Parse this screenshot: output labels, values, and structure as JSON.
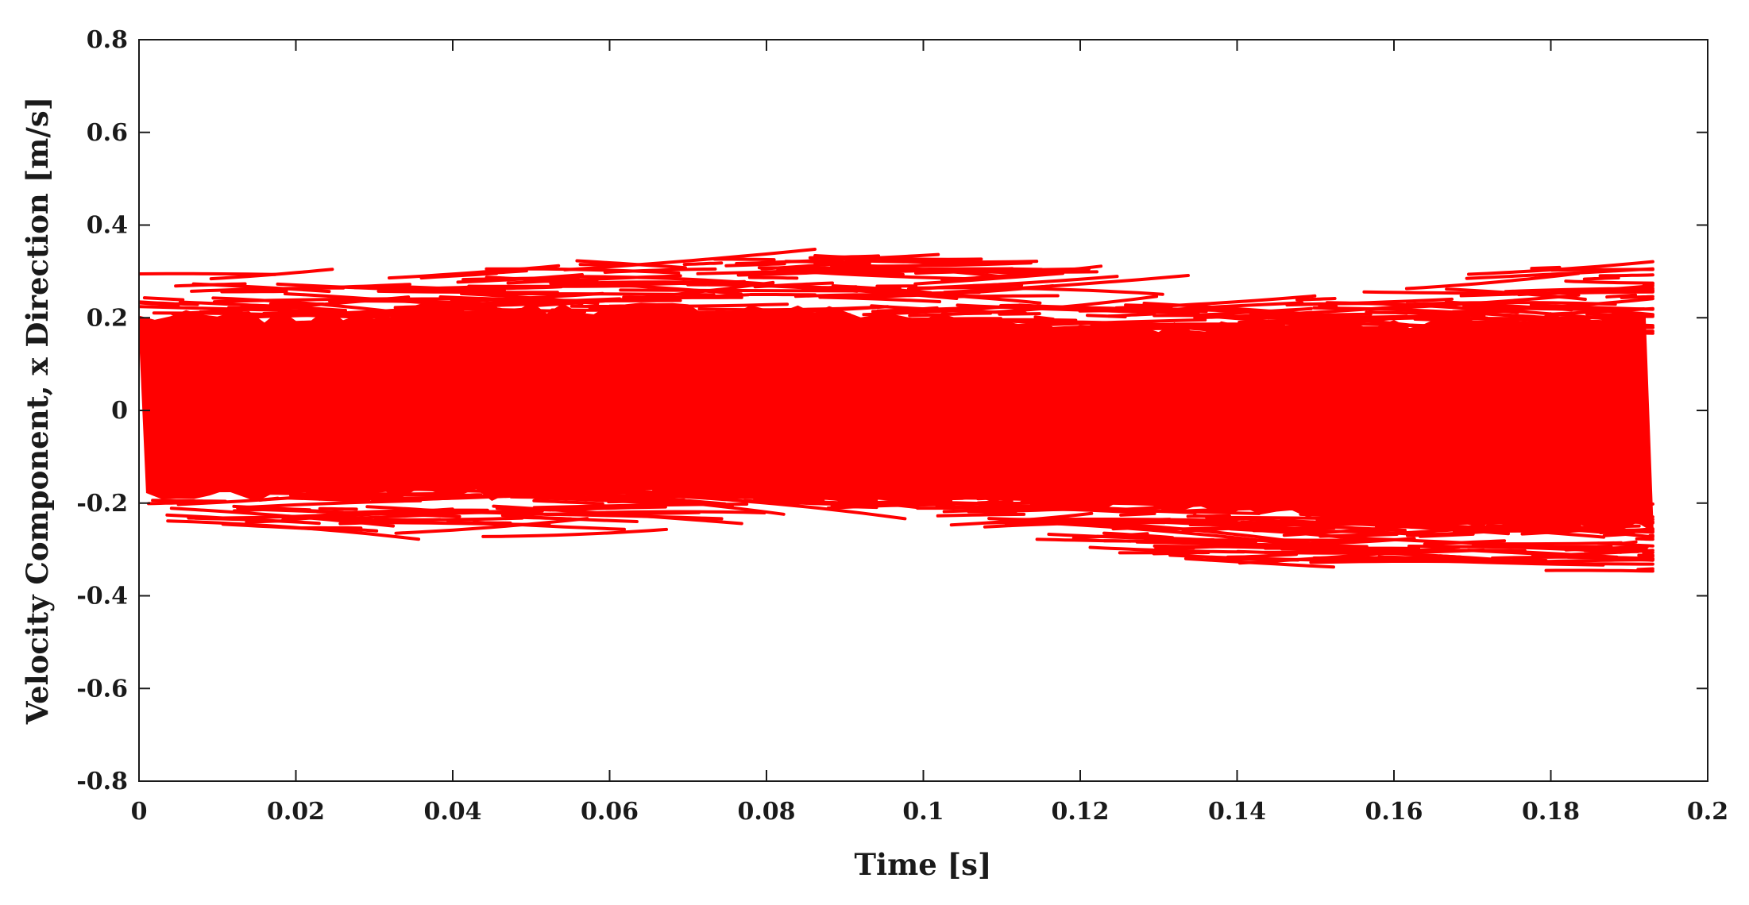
{
  "chart_data": {
    "type": "line",
    "title": "",
    "xlabel": "Time [s]",
    "ylabel": "Velocity Component, x Direction [m/s]",
    "xlim": [
      0,
      0.2
    ],
    "ylim": [
      -0.8,
      0.8
    ],
    "x_ticks": [
      "0",
      "0.02",
      "0.04",
      "0.06",
      "0.08",
      "0.1",
      "0.12",
      "0.14",
      "0.16",
      "0.18",
      "0.2"
    ],
    "y_ticks": [
      "-0.8",
      "-0.6",
      "-0.4",
      "-0.2",
      "0",
      "0.2",
      "0.4",
      "0.6",
      "0.8"
    ],
    "grid": false,
    "legend": "none",
    "line_color": "#ff0000",
    "data_extent": {
      "x": [
        0,
        0.193
      ]
    },
    "envelope": {
      "x": [
        0,
        0.02,
        0.04,
        0.06,
        0.08,
        0.1,
        0.12,
        0.14,
        0.16,
        0.18,
        0.193
      ],
      "dense_upper": [
        0.2,
        0.2,
        0.22,
        0.22,
        0.22,
        0.2,
        0.18,
        0.18,
        0.19,
        0.2,
        0.2
      ],
      "dense_lower": [
        -0.18,
        -0.18,
        -0.18,
        -0.18,
        -0.18,
        -0.18,
        -0.2,
        -0.22,
        -0.24,
        -0.25,
        -0.25
      ],
      "max": [
        0.3,
        0.27,
        0.3,
        0.33,
        0.35,
        0.3,
        0.24,
        0.23,
        0.27,
        0.32,
        0.27
      ],
      "min": [
        -0.25,
        -0.26,
        -0.29,
        -0.2,
        -0.2,
        -0.24,
        -0.3,
        -0.33,
        -0.33,
        -0.35,
        -0.35
      ]
    }
  }
}
